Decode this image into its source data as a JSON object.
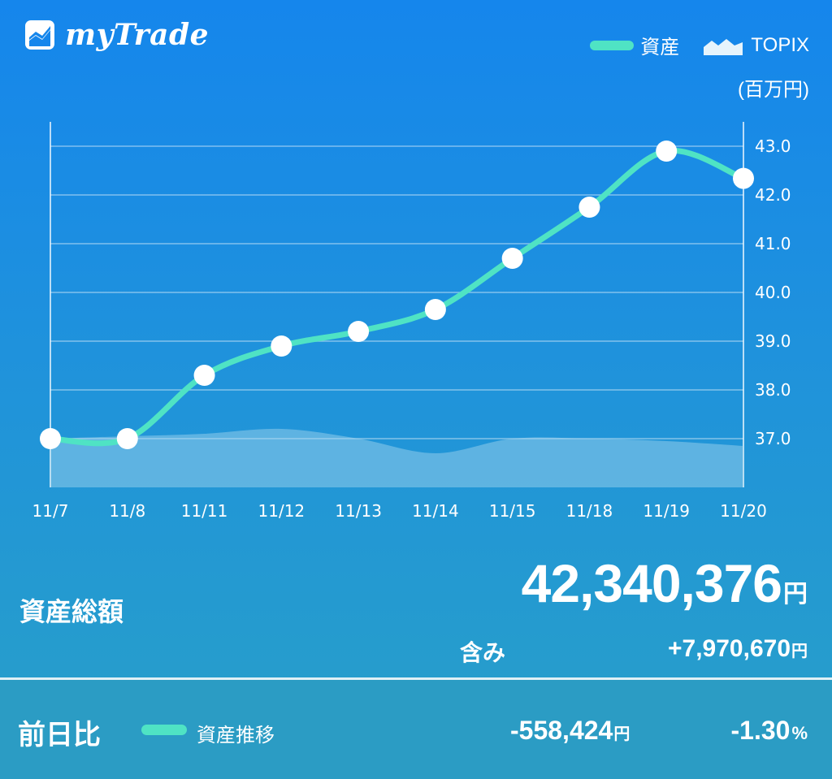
{
  "app": {
    "title": "myTrade"
  },
  "legend": {
    "asset_label": "資産",
    "index_label": "TOPIX"
  },
  "unit_label": "(百万円)",
  "chart_data": {
    "type": "line",
    "categories": [
      "11/7",
      "11/8",
      "11/11",
      "11/12",
      "11/13",
      "11/14",
      "11/15",
      "11/18",
      "11/19",
      "11/20"
    ],
    "series": [
      {
        "name": "資産",
        "values": [
          37.0,
          37.0,
          38.3,
          38.9,
          39.2,
          39.65,
          40.7,
          41.75,
          42.9,
          42.34
        ]
      },
      {
        "name": "TOPIX",
        "values": [
          37.0,
          37.05,
          37.1,
          37.2,
          37.0,
          36.7,
          37.0,
          37.0,
          36.95,
          36.85
        ]
      }
    ],
    "yaxis": {
      "ticks": [
        "37.0",
        "38.0",
        "39.0",
        "40.0",
        "41.0",
        "42.0",
        "43.0"
      ],
      "ylim": [
        36.0,
        43.5
      ],
      "position": "right"
    },
    "grid": true,
    "legend_position": "top-right",
    "colors": {
      "asset_line": "#4fe3c4",
      "marker": "#ffffff",
      "index_area": "#a8d6f0"
    }
  },
  "summary": {
    "total_label": "資産総額",
    "total_value": "42,340,376",
    "total_unit": "円",
    "includes_label": "含み",
    "includes_value": "+7,970,670",
    "includes_unit": "円"
  },
  "footer": {
    "diff_label": "前日比",
    "trend_label": "資産推移",
    "diff_amount": "-558,424",
    "diff_unit": "円",
    "diff_percent": "-1.30",
    "percent_unit": "%"
  }
}
